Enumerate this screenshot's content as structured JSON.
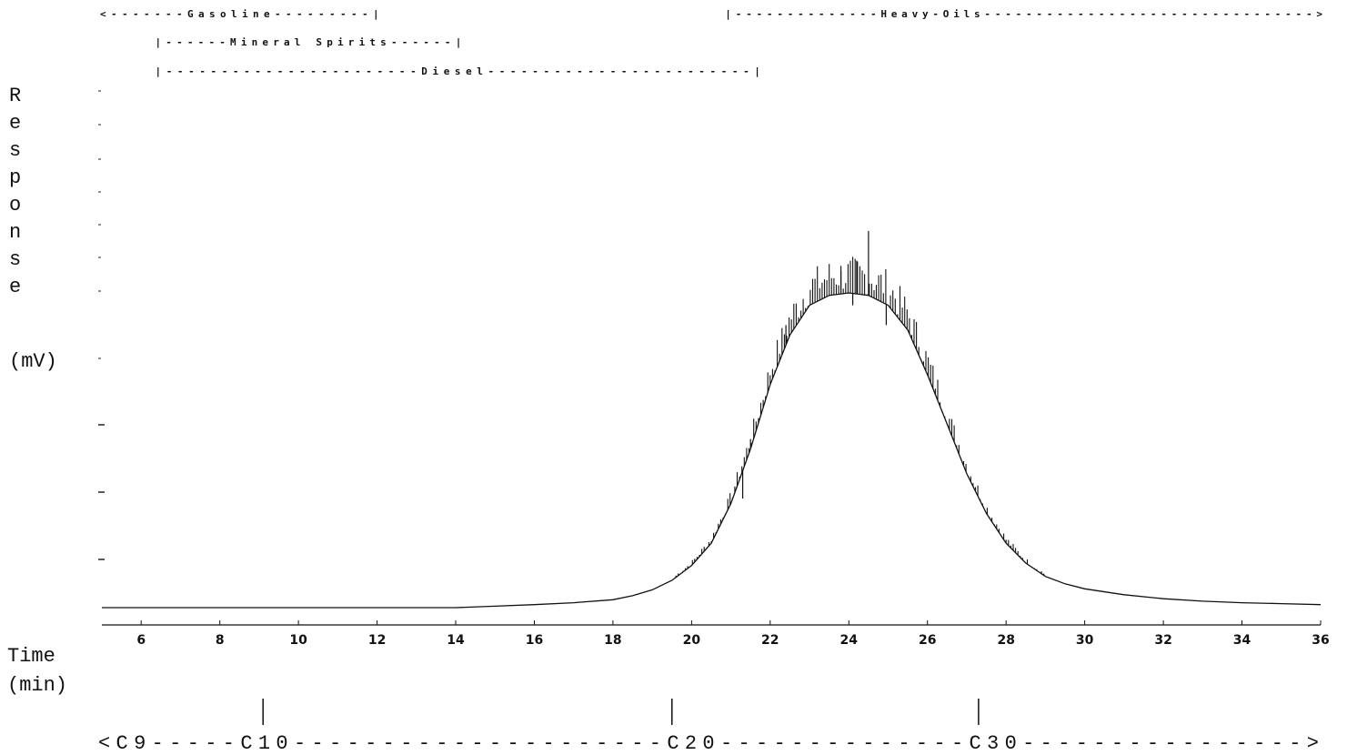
{
  "chart_data": {
    "type": "line",
    "ylabel": "Response",
    "yunit": "(mV)",
    "xlabel": "Time",
    "xunit": "(min)",
    "xlim": [
      5,
      36
    ],
    "ylim": [
      0,
      100
    ],
    "x_ticks": [
      6,
      8,
      10,
      12,
      14,
      16,
      18,
      20,
      22,
      24,
      26,
      28,
      30,
      32,
      34,
      36
    ],
    "ranges": [
      {
        "label": "Gasoline",
        "start": 5,
        "end": 12,
        "text": "<-------Gasoline---------|"
      },
      {
        "label": "Mineral Spirits",
        "start": 6.4,
        "end": 14.1,
        "text": "|------Mineral Spirits------|"
      },
      {
        "label": "Diesel",
        "start": 6.4,
        "end": 21.7,
        "text": "|-----------------------Diesel------------------------|"
      },
      {
        "label": "Heavy-Oils",
        "start": 20.9,
        "end": 36,
        "text": "|--------------Heavy-Oils-------------------------------->"
      }
    ],
    "carbon_markers": [
      {
        "label": "C10",
        "x": 9.1
      },
      {
        "label": "C20",
        "x": 19.5
      },
      {
        "label": "C30",
        "x": 27.3
      }
    ],
    "carbon_axis_text": "<C9-----C10---------------------C20--------------C30---------------->",
    "series": [
      {
        "x": [
          5,
          8,
          10,
          12,
          14,
          15,
          16,
          17,
          18,
          18.5,
          19,
          19.5,
          20,
          20.5,
          21,
          21.5,
          22,
          22.5,
          23,
          23.5,
          24,
          24.5,
          25,
          25.5,
          26,
          26.5,
          27,
          27.5,
          28,
          28.5,
          29,
          29.5,
          30,
          31,
          32,
          33,
          34,
          35,
          36
        ],
        "y": [
          0,
          0,
          0,
          0,
          0,
          0.3,
          0.6,
          1.0,
          1.6,
          2.4,
          3.6,
          5.5,
          8.5,
          13,
          21,
          32,
          45,
          55,
          61,
          63,
          63.5,
          63,
          61,
          56,
          47,
          37,
          27,
          19,
          13,
          9,
          6.3,
          4.8,
          3.8,
          2.6,
          1.8,
          1.3,
          1.0,
          0.8,
          0.6
        ]
      }
    ]
  }
}
